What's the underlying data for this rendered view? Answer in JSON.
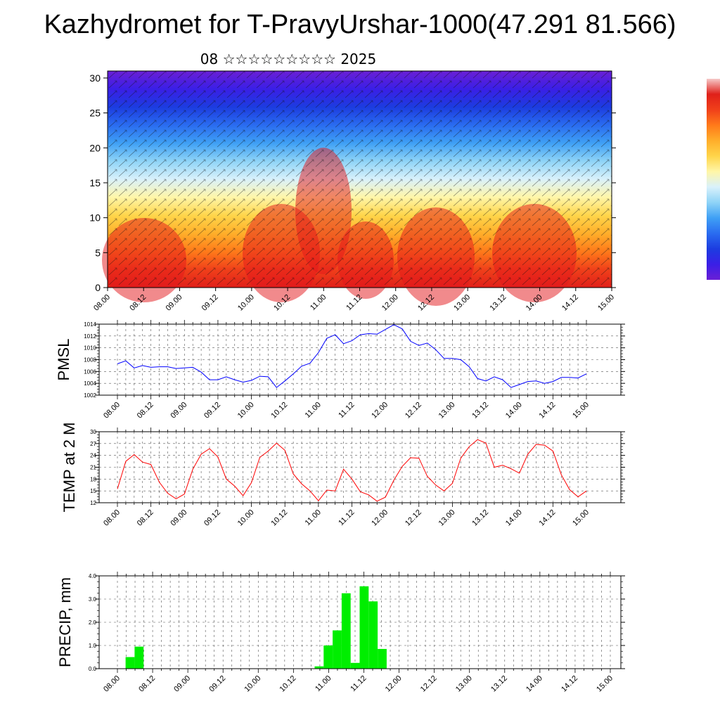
{
  "title": "Kazhydromet for T-PravyUrshar-1000(47.291 81.566)",
  "subtitle": "08 ☆☆☆☆☆☆☆☆☆ 2025",
  "chart_data": [
    {
      "type": "heatmap",
      "title": "",
      "ylim": [
        0,
        31
      ],
      "yticks": [
        0,
        5,
        10,
        15,
        20,
        25,
        30
      ],
      "x_tick_labels": [
        "08.00",
        "08.12",
        "09.00",
        "09.12",
        "10.00",
        "10.12",
        "11.00",
        "11.12",
        "12.00",
        "12.12",
        "13.00",
        "13.12",
        "14.00",
        "14.12",
        "15.00"
      ],
      "colorbar": {
        "colors": [
          "#6a1fd6",
          "#3a1fe6",
          "#1c3ce0",
          "#2a6cf0",
          "#3fa0f5",
          "#8fd4f7",
          "#d9f1fb",
          "#fff6a8",
          "#ffd54a",
          "#ffae2a",
          "#ff7a1a",
          "#f0401a",
          "#e0201a"
        ]
      }
    },
    {
      "type": "line",
      "ylabel": "PMSL",
      "ylim": [
        1002,
        1014
      ],
      "yticks": [
        1002,
        1004,
        1006,
        1008,
        1010,
        1012,
        1014
      ],
      "x_tick_labels": [
        "08.00",
        "08.12",
        "09.00",
        "09.12",
        "10.00",
        "10.12",
        "11.00",
        "11.12",
        "12.00",
        "12.12",
        "13.00",
        "13.12",
        "14.00",
        "14.12",
        "15.00"
      ],
      "color": "#0000ff",
      "values": [
        1007.3,
        1007.8,
        1006.6,
        1007.0,
        1006.7,
        1006.8,
        1006.8,
        1006.5,
        1006.6,
        1006.7,
        1005.9,
        1004.6,
        1004.6,
        1005.1,
        1004.6,
        1004.2,
        1004.5,
        1005.2,
        1005.1,
        1003.3,
        1004.4,
        1005.6,
        1006.9,
        1007.4,
        1009.2,
        1011.6,
        1012.2,
        1010.7,
        1011.2,
        1012.2,
        1012.4,
        1012.3,
        1013.1,
        1013.9,
        1013.2,
        1011.1,
        1010.4,
        1010.8,
        1009.7,
        1008.2,
        1008.2,
        1008.0,
        1006.8,
        1004.8,
        1004.4,
        1005.1,
        1004.6,
        1003.3,
        1003.8,
        1004.3,
        1004.4,
        1004.0,
        1004.3,
        1005.0,
        1005.0,
        1004.9,
        1005.6
      ]
    },
    {
      "type": "line",
      "ylabel": "TEMP at 2 M",
      "ylim": [
        12,
        30
      ],
      "yticks": [
        12,
        15,
        18,
        21,
        24,
        27,
        30
      ],
      "x_tick_labels": [
        "08.00",
        "08.12",
        "09.00",
        "09.12",
        "10.00",
        "10.12",
        "11.00",
        "11.12",
        "12.00",
        "12.12",
        "13.00",
        "13.12",
        "14.00",
        "14.12",
        "15.00"
      ],
      "color": "#ff0000",
      "values": [
        15.5,
        22.5,
        24.2,
        22.3,
        21.7,
        17.2,
        14.4,
        13.0,
        14.2,
        20.5,
        24.3,
        25.7,
        23.6,
        18.0,
        16.2,
        13.8,
        17.1,
        23.5,
        25.1,
        27.1,
        25.3,
        19.3,
        16.8,
        15.0,
        12.5,
        15.2,
        15.0,
        20.5,
        18.0,
        14.8,
        14.0,
        12.4,
        13.4,
        17.7,
        21.2,
        23.4,
        23.3,
        18.7,
        16.5,
        15.0,
        16.9,
        23.3,
        26.2,
        28.0,
        27.1,
        21.0,
        21.5,
        20.6,
        19.5,
        24.3,
        26.8,
        26.6,
        25.1,
        19.1,
        15.3,
        13.5,
        15.0
      ]
    },
    {
      "type": "bar",
      "ylabel": "PRECIP, mm",
      "ylim": [
        0,
        4
      ],
      "yticks": [
        "0.0",
        "1.0",
        "2.0",
        "3.0",
        "4.0"
      ],
      "x_tick_labels": [
        "08.00",
        "08.12",
        "09.00",
        "09.12",
        "10.00",
        "10.12",
        "11.00",
        "11.12",
        "12.00",
        "12.12",
        "13.00",
        "13.12",
        "14.00",
        "14.12",
        "15.00"
      ],
      "color": "#00ee00",
      "values": [
        0,
        0,
        0.5,
        0.95,
        0,
        0,
        0,
        0,
        0,
        0,
        0,
        0,
        0,
        0,
        0,
        0,
        0,
        0,
        0,
        0,
        0,
        0,
        0,
        0.1,
        1.0,
        1.65,
        3.25,
        0.25,
        3.55,
        2.9,
        0.85,
        0,
        0,
        0,
        0,
        0,
        0,
        0,
        0,
        0,
        0,
        0,
        0,
        0,
        0,
        0,
        0,
        0,
        0,
        0,
        0,
        0,
        0,
        0,
        0,
        0
      ]
    }
  ]
}
